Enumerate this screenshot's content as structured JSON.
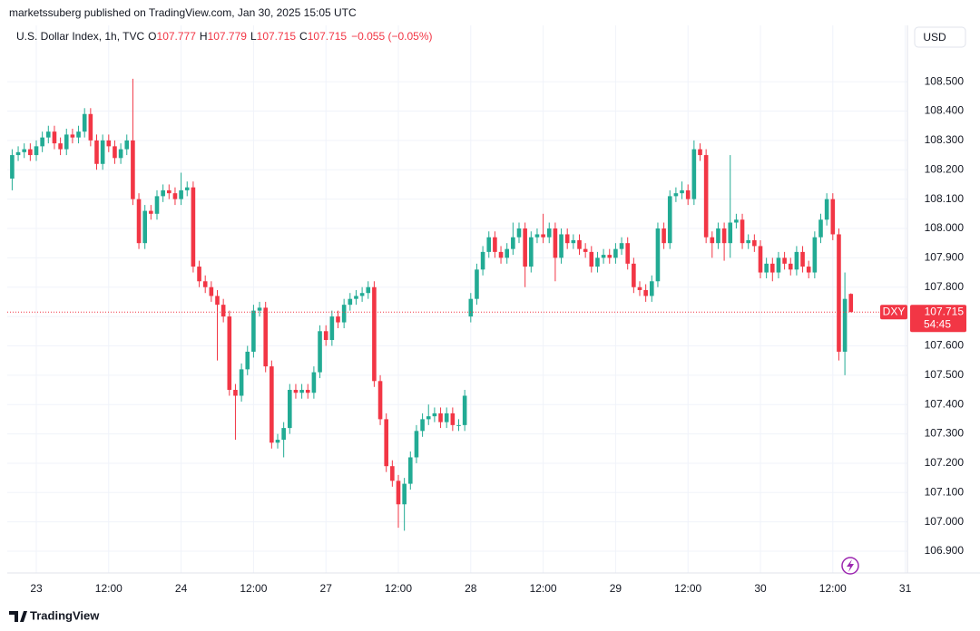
{
  "chart_data": {
    "type": "candlestick",
    "attribution": "marketssuberg published on TradingView.com, Jan 30, 2025 15:05 UTC",
    "symbol": "U.S. Dollar Index, 1h, TVC",
    "legend_labels": [
      "O",
      "H",
      "L",
      "C"
    ],
    "change_label": "−0.055 (−0.05%)",
    "currency": "USD",
    "ticker": "DXY",
    "countdown": "54:45",
    "brand": "TradingView",
    "up_color": "#22ab94",
    "down_color": "#f23645",
    "grid": true,
    "last_price_line": true,
    "ylim": [
      106.826,
      108.692
    ],
    "yticks": [
      {
        "value": 106.9,
        "label": "106.900"
      },
      {
        "value": 107.0,
        "label": "107.000"
      },
      {
        "value": 107.1,
        "label": "107.100"
      },
      {
        "value": 107.2,
        "label": "107.200"
      },
      {
        "value": 107.3,
        "label": "107.300"
      },
      {
        "value": 107.4,
        "label": "107.400"
      },
      {
        "value": 107.5,
        "label": "107.500"
      },
      {
        "value": 107.6,
        "label": "107.600"
      },
      {
        "value": 107.7,
        "label": "107.700"
      },
      {
        "value": 107.8,
        "label": "107.800"
      },
      {
        "value": 107.9,
        "label": "107.900"
      },
      {
        "value": 108.0,
        "label": "108.000"
      },
      {
        "value": 108.1,
        "label": "108.100"
      },
      {
        "value": 108.2,
        "label": "108.200"
      },
      {
        "value": 108.3,
        "label": "108.300"
      },
      {
        "value": 108.4,
        "label": "108.400"
      },
      {
        "value": 108.5,
        "label": "108.500"
      }
    ],
    "categories": [
      null,
      null,
      null,
      null,
      "23",
      null,
      null,
      null,
      null,
      null,
      null,
      null,
      null,
      null,
      null,
      null,
      "12:00",
      null,
      null,
      null,
      null,
      null,
      null,
      null,
      null,
      null,
      null,
      null,
      "24",
      null,
      null,
      null,
      null,
      null,
      null,
      null,
      null,
      null,
      null,
      null,
      "12:00",
      null,
      null,
      null,
      null,
      null,
      null,
      null,
      null,
      null,
      null,
      null,
      "27",
      null,
      null,
      null,
      null,
      null,
      null,
      null,
      null,
      null,
      null,
      null,
      "12:00",
      null,
      null,
      null,
      null,
      null,
      null,
      null,
      null,
      null,
      null,
      null,
      "28",
      null,
      null,
      null,
      null,
      null,
      null,
      null,
      null,
      null,
      null,
      null,
      "12:00",
      null,
      null,
      null,
      null,
      null,
      null,
      null,
      null,
      null,
      null,
      null,
      "29",
      null,
      null,
      null,
      null,
      null,
      null,
      null,
      null,
      null,
      null,
      null,
      "12:00",
      null,
      null,
      null,
      null,
      null,
      null,
      null,
      null,
      null,
      null,
      null,
      "30",
      null,
      null,
      null,
      null,
      null,
      null,
      null,
      null,
      null,
      null,
      null,
      "12:00",
      null,
      null,
      null,
      null,
      null,
      null,
      null,
      null,
      null,
      null,
      null,
      "31"
    ],
    "open": [
      108.17,
      108.25,
      108.26,
      108.27,
      108.25,
      108.28,
      108.31,
      108.33,
      108.29,
      108.27,
      108.32,
      108.31,
      108.33,
      108.39,
      108.3,
      108.22,
      108.3,
      108.28,
      108.24,
      108.27,
      108.3,
      108.1,
      107.95,
      108.06,
      108.05,
      108.11,
      108.13,
      108.12,
      108.1,
      108.13,
      108.14,
      107.87,
      107.82,
      107.8,
      107.77,
      107.74,
      107.7,
      107.45,
      107.43,
      107.52,
      107.58,
      107.72,
      107.73,
      107.53,
      107.27,
      107.28,
      107.32,
      107.45,
      107.44,
      107.45,
      107.44,
      107.51,
      107.65,
      107.62,
      107.7,
      107.68,
      107.74,
      107.76,
      107.77,
      107.78,
      107.8,
      107.48,
      107.35,
      107.19,
      107.14,
      107.06,
      107.13,
      107.22,
      107.31,
      107.35,
      107.36,
      107.37,
      107.34,
      107.37,
      107.33,
      107.33,
      107.7,
      107.76,
      107.86,
      107.92,
      107.97,
      107.92,
      107.9,
      107.93,
      107.97,
      108.0,
      107.87,
      107.97,
      107.98,
      107.97,
      108.0,
      107.9,
      107.98,
      107.95,
      107.96,
      107.93,
      107.92,
      107.87,
      107.9,
      107.91,
      107.9,
      107.93,
      107.95,
      107.88,
      107.8,
      107.79,
      107.77,
      107.82,
      108.0,
      107.95,
      108.11,
      108.12,
      108.13,
      108.1,
      108.27,
      108.25,
      107.97,
      107.95,
      108.0,
      107.95,
      108.02,
      108.03,
      107.95,
      107.96,
      107.94,
      107.85,
      107.88,
      107.85,
      107.9,
      107.88,
      107.86,
      107.92,
      107.87,
      107.85,
      107.97,
      108.03,
      108.1,
      107.98,
      107.58,
      107.777,
      null,
      null,
      null,
      null,
      null,
      null,
      null,
      null,
      null
    ],
    "high": [
      108.27,
      108.28,
      108.29,
      108.29,
      108.3,
      108.33,
      108.35,
      108.35,
      108.31,
      108.34,
      108.34,
      108.35,
      108.41,
      108.41,
      108.32,
      108.32,
      108.32,
      108.3,
      108.29,
      108.32,
      108.51,
      108.12,
      108.08,
      108.08,
      108.13,
      108.15,
      108.15,
      108.14,
      108.19,
      108.16,
      108.16,
      107.89,
      107.84,
      107.82,
      107.79,
      107.76,
      107.72,
      107.47,
      107.54,
      107.6,
      107.74,
      107.75,
      107.75,
      107.55,
      107.3,
      107.34,
      107.47,
      107.47,
      107.47,
      107.47,
      107.53,
      107.67,
      107.67,
      107.72,
      107.72,
      107.76,
      107.78,
      107.79,
      107.8,
      107.82,
      107.82,
      107.5,
      107.37,
      107.21,
      107.16,
      107.15,
      107.24,
      107.33,
      107.37,
      107.4,
      107.39,
      107.39,
      107.39,
      107.39,
      107.35,
      107.45,
      107.78,
      107.88,
      107.94,
      107.99,
      107.99,
      107.94,
      107.95,
      108.02,
      108.02,
      108.02,
      107.99,
      108.0,
      108.05,
      108.02,
      108.02,
      108.0,
      108.0,
      107.98,
      107.98,
      107.95,
      107.94,
      107.92,
      107.93,
      107.93,
      107.95,
      107.97,
      107.97,
      107.9,
      107.82,
      107.81,
      107.84,
      108.02,
      108.02,
      108.13,
      108.14,
      108.16,
      108.15,
      108.3,
      108.29,
      108.27,
      107.99,
      108.02,
      108.02,
      108.25,
      108.05,
      108.05,
      107.98,
      107.98,
      107.96,
      107.9,
      107.9,
      107.92,
      107.92,
      107.9,
      107.94,
      107.94,
      107.89,
      107.99,
      108.05,
      108.12,
      108.12,
      108.0,
      107.85,
      107.779,
      null,
      null,
      null,
      null,
      null,
      null,
      null,
      null,
      null
    ],
    "low": [
      108.13,
      108.23,
      108.24,
      108.23,
      108.23,
      108.26,
      108.29,
      108.27,
      108.25,
      108.25,
      108.29,
      108.29,
      108.31,
      108.28,
      108.2,
      108.2,
      108.26,
      108.22,
      108.22,
      108.25,
      108.08,
      107.93,
      107.93,
      108.03,
      108.03,
      108.09,
      108.1,
      108.08,
      108.08,
      108.11,
      107.85,
      107.8,
      107.78,
      107.75,
      107.55,
      107.68,
      107.43,
      107.28,
      107.41,
      107.5,
      107.56,
      107.7,
      107.51,
      107.25,
      107.25,
      107.22,
      107.3,
      107.42,
      107.42,
      107.42,
      107.42,
      107.49,
      107.6,
      107.6,
      107.66,
      107.66,
      107.72,
      107.74,
      107.75,
      107.76,
      107.46,
      107.33,
      107.17,
      107.12,
      106.98,
      106.97,
      107.11,
      107.2,
      107.29,
      107.33,
      107.34,
      107.32,
      107.32,
      107.31,
      107.31,
      107.31,
      107.68,
      107.74,
      107.84,
      107.9,
      107.9,
      107.88,
      107.88,
      107.91,
      107.95,
      107.8,
      107.85,
      107.95,
      107.95,
      107.95,
      107.82,
      107.88,
      107.93,
      107.93,
      107.91,
      107.9,
      107.85,
      107.85,
      107.88,
      107.88,
      107.88,
      107.91,
      107.86,
      107.78,
      107.77,
      107.75,
      107.75,
      107.8,
      107.93,
      107.93,
      108.09,
      108.1,
      108.08,
      108.08,
      108.23,
      107.95,
      107.9,
      107.93,
      107.89,
      107.9,
      108.0,
      107.93,
      107.93,
      107.92,
      107.83,
      107.83,
      107.82,
      107.83,
      107.86,
      107.84,
      107.84,
      107.85,
      107.83,
      107.83,
      107.95,
      108.01,
      107.96,
      107.55,
      107.5,
      107.715,
      null,
      null,
      null,
      null,
      null,
      null,
      null,
      null,
      null
    ],
    "close": [
      108.25,
      108.26,
      108.27,
      108.25,
      108.28,
      108.31,
      108.33,
      108.29,
      108.27,
      108.32,
      108.31,
      108.33,
      108.39,
      108.3,
      108.22,
      108.3,
      108.28,
      108.24,
      108.27,
      108.3,
      108.1,
      107.95,
      108.06,
      108.05,
      108.11,
      108.13,
      108.12,
      108.1,
      108.13,
      108.14,
      107.87,
      107.82,
      107.8,
      107.77,
      107.74,
      107.7,
      107.45,
      107.43,
      107.52,
      107.58,
      107.72,
      107.73,
      107.53,
      107.27,
      107.28,
      107.32,
      107.45,
      107.44,
      107.45,
      107.44,
      107.51,
      107.65,
      107.62,
      107.7,
      107.68,
      107.74,
      107.76,
      107.77,
      107.78,
      107.8,
      107.48,
      107.35,
      107.19,
      107.14,
      107.06,
      107.13,
      107.22,
      107.31,
      107.35,
      107.36,
      107.37,
      107.34,
      107.37,
      107.33,
      107.33,
      107.43,
      107.76,
      107.86,
      107.92,
      107.97,
      107.92,
      107.9,
      107.93,
      107.97,
      108.0,
      107.87,
      107.97,
      107.98,
      107.97,
      108.0,
      107.9,
      107.98,
      107.95,
      107.96,
      107.93,
      107.92,
      107.87,
      107.9,
      107.91,
      107.9,
      107.93,
      107.95,
      107.88,
      107.8,
      107.79,
      107.77,
      107.82,
      108.0,
      107.95,
      108.11,
      108.12,
      108.13,
      108.1,
      108.27,
      108.25,
      107.97,
      107.95,
      108.0,
      107.95,
      108.02,
      108.03,
      107.95,
      107.96,
      107.94,
      107.85,
      107.88,
      107.85,
      107.9,
      107.88,
      107.86,
      107.92,
      107.87,
      107.85,
      107.97,
      108.03,
      108.1,
      107.98,
      107.58,
      107.76,
      107.715,
      null,
      null,
      null,
      null,
      null,
      null,
      null,
      null,
      null
    ]
  }
}
